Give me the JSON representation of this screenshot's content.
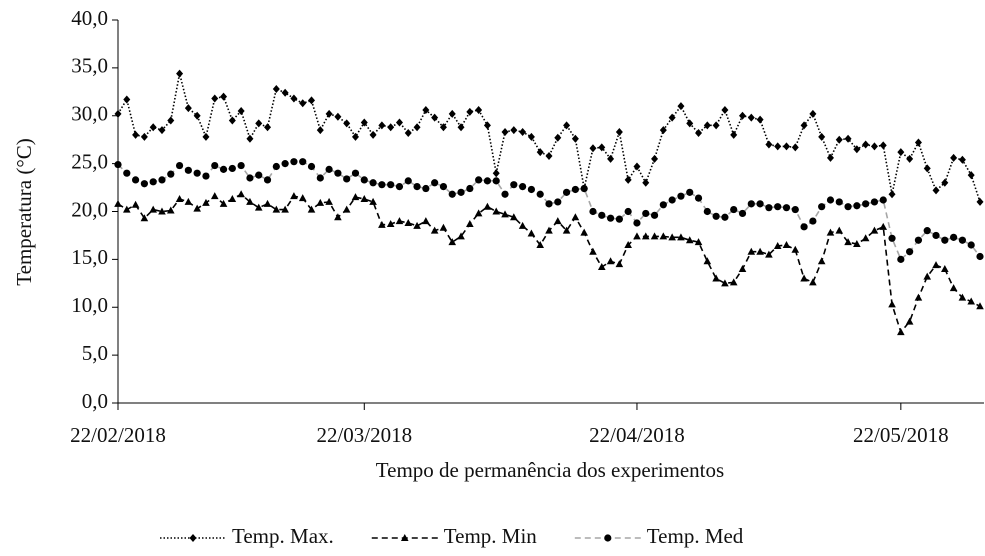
{
  "chart_data": {
    "type": "line",
    "y_label": "Temperatura (°C)",
    "x_label": "Tempo de permanência dos experimentos",
    "x": [
      "22/02/2018",
      "23/02/2018",
      "24/02/2018",
      "25/02/2018",
      "26/02/2018",
      "27/02/2018",
      "28/02/2018",
      "01/03/2018",
      "02/03/2018",
      "03/03/2018",
      "04/03/2018",
      "05/03/2018",
      "06/03/2018",
      "07/03/2018",
      "08/03/2018",
      "09/03/2018",
      "10/03/2018",
      "11/03/2018",
      "12/03/2018",
      "13/03/2018",
      "14/03/2018",
      "15/03/2018",
      "16/03/2018",
      "17/03/2018",
      "18/03/2018",
      "19/03/2018",
      "20/03/2018",
      "21/03/2018",
      "22/03/2018",
      "23/03/2018",
      "24/03/2018",
      "25/03/2018",
      "26/03/2018",
      "27/03/2018",
      "28/03/2018",
      "29/03/2018",
      "30/03/2018",
      "31/03/2018",
      "01/04/2018",
      "02/04/2018",
      "03/04/2018",
      "04/04/2018",
      "05/04/2018",
      "06/04/2018",
      "07/04/2018",
      "08/04/2018",
      "09/04/2018",
      "10/04/2018",
      "11/04/2018",
      "12/04/2018",
      "13/04/2018",
      "14/04/2018",
      "15/04/2018",
      "16/04/2018",
      "17/04/2018",
      "18/04/2018",
      "19/04/2018",
      "20/04/2018",
      "21/04/2018",
      "22/04/2018",
      "23/04/2018",
      "24/04/2018",
      "25/04/2018",
      "26/04/2018",
      "27/04/2018",
      "28/04/2018",
      "29/04/2018",
      "30/04/2018",
      "01/05/2018",
      "02/05/2018",
      "03/05/2018",
      "04/05/2018",
      "05/05/2018",
      "06/05/2018",
      "07/05/2018",
      "08/05/2018",
      "09/05/2018",
      "10/05/2018",
      "11/05/2018",
      "12/05/2018",
      "13/05/2018",
      "14/05/2018",
      "15/05/2018",
      "16/05/2018",
      "17/05/2018",
      "18/05/2018",
      "19/05/2018",
      "20/05/2018",
      "21/05/2018",
      "22/05/2018",
      "23/05/2018",
      "24/05/2018",
      "25/05/2018",
      "26/05/2018",
      "27/05/2018",
      "28/05/2018",
      "29/05/2018",
      "30/05/2018",
      "31/05/2018"
    ],
    "xlim": [
      "22/02/2018",
      "31/05/2018"
    ],
    "xticks": [
      "22/02/2018",
      "22/03/2018",
      "22/04/2018",
      "22/05/2018"
    ],
    "ylim": [
      0,
      40
    ],
    "yticks": [
      {
        "value": 0,
        "label": "0,0"
      },
      {
        "value": 5,
        "label": "5,0"
      },
      {
        "value": 10,
        "label": "10,0"
      },
      {
        "value": 15,
        "label": "15,0"
      },
      {
        "value": 20,
        "label": "20,0"
      },
      {
        "value": 25,
        "label": "25,0"
      },
      {
        "value": 30,
        "label": "30,0"
      },
      {
        "value": 35,
        "label": "35,0"
      },
      {
        "value": 40,
        "label": "40,0"
      }
    ],
    "grid": false,
    "series": [
      {
        "name": "Temp. Max.",
        "color": "#000000",
        "marker_color": "#000000",
        "line_style": "dotted",
        "marker": "diamond",
        "values": [
          30.2,
          31.7,
          28.0,
          27.8,
          28.8,
          28.5,
          29.5,
          34.4,
          30.8,
          30.0,
          27.8,
          31.8,
          32.0,
          29.5,
          30.5,
          27.6,
          29.2,
          28.8,
          32.8,
          32.4,
          31.8,
          31.3,
          31.6,
          28.5,
          30.2,
          29.9,
          29.2,
          27.8,
          29.3,
          28.0,
          29.0,
          28.8,
          29.3,
          28.2,
          28.8,
          30.6,
          29.8,
          28.8,
          30.2,
          28.8,
          30.4,
          30.6,
          29.0,
          24.0,
          28.3,
          28.5,
          28.3,
          27.8,
          26.2,
          25.8,
          27.7,
          29.0,
          27.6,
          22.4,
          26.6,
          26.7,
          25.5,
          28.3,
          23.3,
          24.7,
          23.0,
          25.5,
          28.5,
          29.8,
          31.0,
          29.2,
          28.2,
          29.0,
          29.0,
          30.6,
          28.0,
          30.0,
          29.8,
          29.6,
          27.0,
          26.8,
          26.8,
          26.7,
          29.0,
          30.2,
          27.8,
          25.6,
          27.5,
          27.6,
          26.5,
          27.0,
          26.8,
          26.9,
          21.8,
          26.2,
          25.5,
          27.2,
          24.5,
          22.2,
          23.0,
          25.6,
          25.4,
          23.8,
          21.0
        ]
      },
      {
        "name": "Temp. Min",
        "color": "#000000",
        "marker_color": "#000000",
        "line_style": "dashed",
        "marker": "triangle",
        "values": [
          20.8,
          20.2,
          20.7,
          19.3,
          20.2,
          20.0,
          20.1,
          21.3,
          21.0,
          20.3,
          20.9,
          21.6,
          20.8,
          21.3,
          21.8,
          21.0,
          20.4,
          20.8,
          20.2,
          20.2,
          21.6,
          21.4,
          20.2,
          20.9,
          21.0,
          19.4,
          20.2,
          21.5,
          21.3,
          21.0,
          18.6,
          18.7,
          19.0,
          18.8,
          18.5,
          19.0,
          18.0,
          18.3,
          16.8,
          17.4,
          18.7,
          19.8,
          20.5,
          20.0,
          19.7,
          19.4,
          18.5,
          17.7,
          16.5,
          18.0,
          19.0,
          18.0,
          19.4,
          17.8,
          15.8,
          14.2,
          14.8,
          14.5,
          16.5,
          17.4,
          17.4,
          17.4,
          17.4,
          17.3,
          17.3,
          17.0,
          16.8,
          14.8,
          13.0,
          12.5,
          12.6,
          14.0,
          15.8,
          15.8,
          15.5,
          16.4,
          16.5,
          16.0,
          13.0,
          12.6,
          14.8,
          17.8,
          18.0,
          16.8,
          16.6,
          17.2,
          18.0,
          18.4,
          10.3,
          7.4,
          8.5,
          11.0,
          13.2,
          14.4,
          14.0,
          12.0,
          11.0,
          10.6,
          10.1
        ]
      },
      {
        "name": "Temp. Med",
        "color": "#a6a6a6",
        "marker_color": "#000000",
        "line_style": "dashed",
        "marker": "circle",
        "values": [
          24.9,
          24.0,
          23.3,
          22.9,
          23.1,
          23.3,
          23.9,
          24.8,
          24.3,
          24.0,
          23.7,
          24.8,
          24.4,
          24.5,
          24.8,
          23.5,
          23.8,
          23.3,
          24.7,
          25.0,
          25.2,
          25.2,
          24.7,
          23.5,
          24.4,
          24.0,
          23.4,
          24.0,
          23.3,
          23.0,
          22.8,
          22.8,
          22.6,
          23.2,
          22.6,
          22.4,
          23.0,
          22.6,
          21.8,
          22.0,
          22.4,
          23.3,
          23.2,
          23.2,
          21.8,
          22.8,
          22.6,
          22.3,
          21.8,
          20.8,
          21.0,
          22.0,
          22.3,
          22.4,
          20.0,
          19.6,
          19.3,
          19.2,
          20.0,
          18.8,
          19.8,
          19.6,
          20.7,
          21.2,
          21.6,
          22.0,
          21.4,
          20.0,
          19.5,
          19.4,
          20.2,
          19.8,
          20.8,
          20.8,
          20.4,
          20.5,
          20.4,
          20.2,
          18.4,
          19.0,
          20.5,
          21.2,
          21.0,
          20.5,
          20.6,
          20.8,
          21.0,
          21.2,
          17.2,
          15.0,
          15.8,
          17.0,
          18.0,
          17.5,
          17.0,
          17.3,
          17.0,
          16.5,
          15.3
        ]
      }
    ]
  }
}
